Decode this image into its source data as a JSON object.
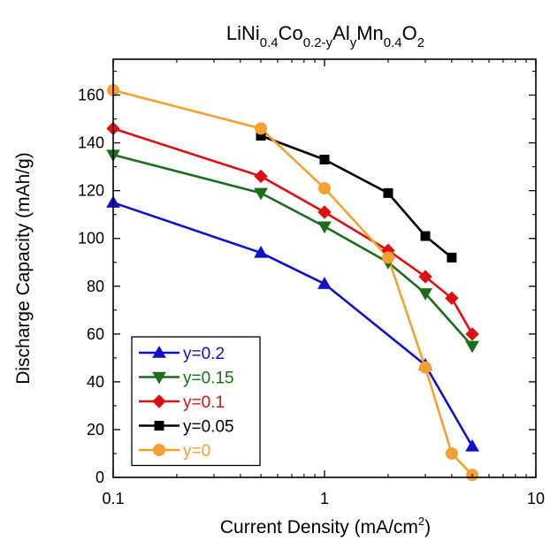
{
  "chart_data": {
    "type": "line",
    "title": {
      "parts": [
        {
          "text": "LiNi",
          "sub": false
        },
        {
          "text": "0.4",
          "sub": true
        },
        {
          "text": "Co",
          "sub": false
        },
        {
          "text": "0.2-y",
          "sub": true
        },
        {
          "text": "Al",
          "sub": false
        },
        {
          "text": "y",
          "sub": true
        },
        {
          "text": "Mn",
          "sub": false
        },
        {
          "text": "0.4",
          "sub": true
        },
        {
          "text": "O",
          "sub": false
        },
        {
          "text": "2",
          "sub": true
        }
      ]
    },
    "xlabel": "Current Density (mA/cm",
    "xlabel_sup": "2",
    "xlabel_end": ")",
    "ylabel": "Discharge Capacity (mAh/g)",
    "xscale": "log",
    "xlim": [
      0.1,
      10
    ],
    "ylim": [
      0,
      175
    ],
    "xticks": [
      0.1,
      1,
      10
    ],
    "xtick_labels": [
      "0.1",
      "1",
      "10"
    ],
    "yticks": [
      0,
      20,
      40,
      60,
      80,
      100,
      120,
      140,
      160
    ],
    "ytick_labels": [
      "0",
      "20",
      "40",
      "60",
      "80",
      "100",
      "120",
      "140",
      "160"
    ],
    "grid": false,
    "legend_position": "bottom-left",
    "series": [
      {
        "name": "y=0.2",
        "color": "#1111cc",
        "marker": "triangle-up",
        "x": [
          0.1,
          0.5,
          1,
          3,
          5
        ],
        "y": [
          115,
          94,
          81,
          47,
          13
        ]
      },
      {
        "name": "y=0.15",
        "color": "#1a6e1a",
        "marker": "triangle-down",
        "x": [
          0.1,
          0.5,
          1,
          2,
          3,
          5
        ],
        "y": [
          135,
          119,
          105,
          90,
          77,
          55
        ]
      },
      {
        "name": "y=0.1",
        "color": "#dd1111",
        "marker": "diamond",
        "x": [
          0.1,
          0.5,
          1,
          2,
          3,
          4,
          5
        ],
        "y": [
          146,
          126,
          111,
          95,
          84,
          75,
          60
        ]
      },
      {
        "name": "y=0.05",
        "color": "#000000",
        "marker": "square",
        "x": [
          0.5,
          1,
          2,
          3,
          4
        ],
        "y": [
          143,
          133,
          119,
          101,
          92
        ]
      },
      {
        "name": "y=0",
        "color": "#f5a030",
        "marker": "circle",
        "x": [
          0.1,
          0.5,
          1,
          2,
          3,
          4,
          5
        ],
        "y": [
          162,
          146,
          121,
          92,
          46,
          10,
          1
        ]
      }
    ]
  }
}
